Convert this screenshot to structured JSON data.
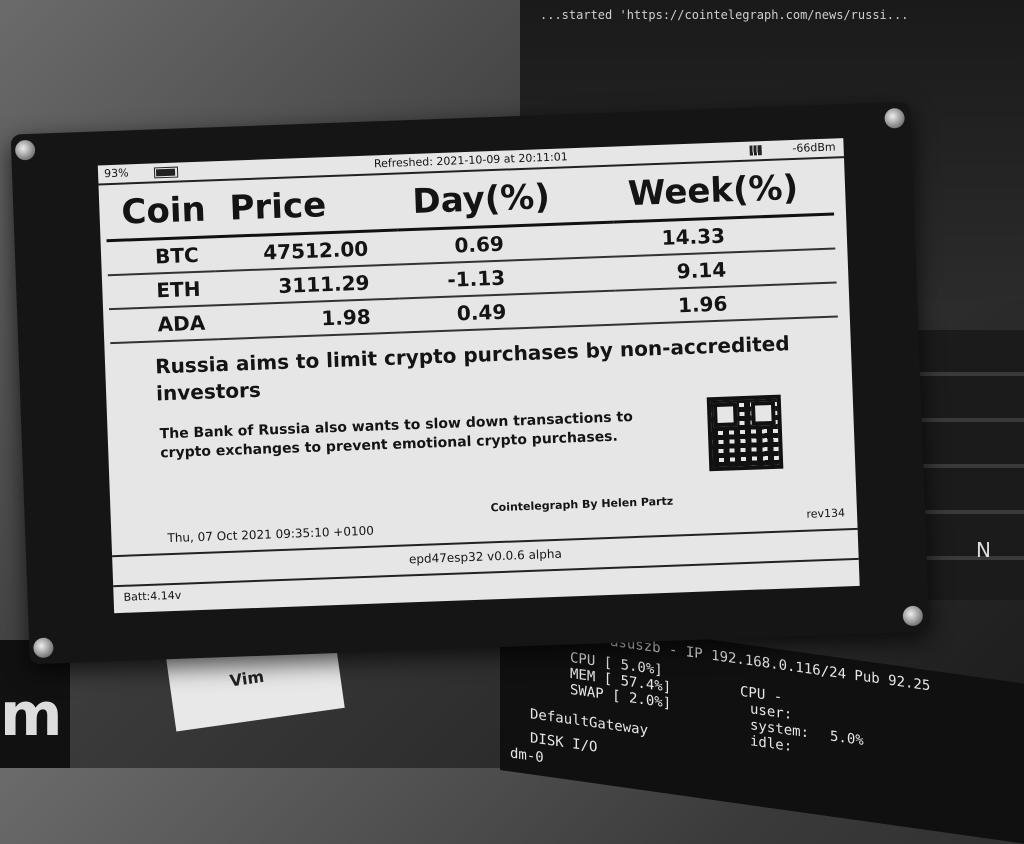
{
  "background": {
    "terminal_title": "...started 'https://cointelegraph.com/news/russi...",
    "laptop_key": "N",
    "terminal2": {
      "line1": "asuszb - IP 192.168.0.116/24 Pub 92.25",
      "cpu_label": "CPU [ 5.0%]",
      "mem_label": "MEM [ 57.4%]",
      "swap_label": "SWAP [ 2.0%]",
      "cpu2": "CPU -",
      "user": "user:",
      "system": "system:",
      "idle": "idle:",
      "cpu_value": "5.0%",
      "gateway": "DefaultGateway",
      "disk": "DISK I/O",
      "dm": "dm-0"
    },
    "sticker_vim": "Vim",
    "sticker_m": "m"
  },
  "device": {
    "status_bar": {
      "battery_pct": "93%",
      "refreshed": "Refreshed: 2021-10-09 at 20:11:01",
      "rssi": "-66dBm"
    },
    "table": {
      "headers": [
        "Coin",
        "Price",
        "Day(%)",
        "Week(%)"
      ],
      "rows": [
        {
          "coin": "BTC",
          "price": "47512.00",
          "day": "0.69",
          "week": "14.33"
        },
        {
          "coin": "ETH",
          "price": "3111.29",
          "day": "-1.13",
          "week": "9.14"
        },
        {
          "coin": "ADA",
          "price": "1.98",
          "day": "0.49",
          "week": "1.96"
        }
      ]
    },
    "news": {
      "title": "Russia aims to limit crypto purchases by non-accredited investors",
      "body": "The Bank of Russia also wants to slow down transactions to crypto exchanges to prevent emotional crypto purchases.",
      "author": "Cointelegraph By Helen Partz",
      "date": "Thu, 07 Oct 2021 09:35:10 +0100",
      "rev": "rev134"
    },
    "firmware": "epd47esp32 v0.0.6 alpha",
    "battery_voltage": "Batt:4.14v"
  }
}
